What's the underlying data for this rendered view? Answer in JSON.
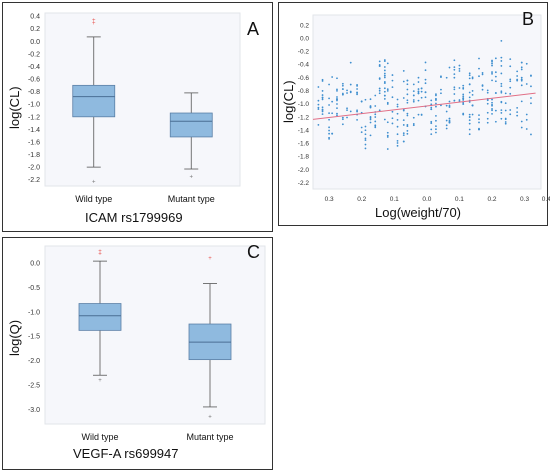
{
  "chart_data": [
    {
      "panel": "A",
      "type": "box",
      "categories": [
        "Wild type",
        "Mutant type"
      ],
      "xlabel": "ICAM rs1799969",
      "ylabel": "log(CL)",
      "ylim": [
        -2.3,
        0.45
      ],
      "yticks": [
        "0.4",
        "0.2",
        "0.0",
        "-0.2",
        "-0.4",
        "-0.6",
        "-0.8",
        "-1.0",
        "-1.2",
        "-1.4",
        "-1.6",
        "-1.8",
        "-2.0",
        "-2.2"
      ],
      "boxes": [
        {
          "category": "Wild type",
          "whisker_low": -2.0,
          "q1": -1.2,
          "median": -0.88,
          "q3": -0.7,
          "whisker_high": 0.07,
          "outliers": [
            0.34,
            0.29,
            -2.23
          ]
        },
        {
          "category": "Mutant type",
          "whisker_low": -2.03,
          "q1": -1.52,
          "median": -1.27,
          "q3": -1.14,
          "whisker_high": -0.82,
          "outliers": [
            -2.15
          ]
        }
      ]
    },
    {
      "panel": "B",
      "type": "scatter",
      "xlabel": "Log(weight/70)",
      "ylabel": "log(CL)",
      "xticks": [
        "0.3",
        "0.2",
        "0.1",
        "0.0",
        "0.1",
        "0.2",
        "0.3",
        "0.4"
      ],
      "yticks": [
        "0.2",
        "0.0",
        "-0.2",
        "-0.4",
        "-0.6",
        "-0.8",
        "-1.0",
        "-1.2",
        "-1.4",
        "-1.6",
        "-1.8",
        "-2.0",
        "-2.2"
      ],
      "ylim": [
        -2.3,
        0.35
      ],
      "xlim": [
        -0.42,
        0.42
      ],
      "trend": {
        "x": [
          -0.42,
          0.4
        ],
        "y": [
          -1.24,
          -0.84
        ]
      }
    },
    {
      "panel": "C",
      "type": "box",
      "categories": [
        "Wild type",
        "Mutant type"
      ],
      "xlabel": "VEGF-A rs699947",
      "ylabel": "log(Q)",
      "ylim": [
        -3.3,
        0.35
      ],
      "yticks": [
        "0.0",
        "-0.5",
        "-1.0",
        "-1.5",
        "-2.0",
        "-2.5",
        "-3.0"
      ],
      "boxes": [
        {
          "category": "Wild type",
          "whisker_low": -2.3,
          "q1": -1.38,
          "median": -1.08,
          "q3": -0.83,
          "whisker_high": 0.04,
          "outliers": [
            0.2,
            0.25,
            -2.4
          ]
        },
        {
          "category": "Mutant type",
          "whisker_low": -2.95,
          "q1": -1.98,
          "median": -1.62,
          "q3": -1.25,
          "whisker_high": -0.42,
          "outliers": [
            0.1,
            -3.15
          ]
        }
      ]
    }
  ],
  "labels": {
    "a": "A",
    "b": "B",
    "c": "C"
  },
  "colors": {
    "box_fill": "#8fbadf",
    "box_edge": "#5a7fa6",
    "whisker": "#555555",
    "outlier": "#e8544f",
    "points": "#3f8fcf",
    "trend": "#e16f86",
    "plot_bg": "#f6f7fb"
  }
}
